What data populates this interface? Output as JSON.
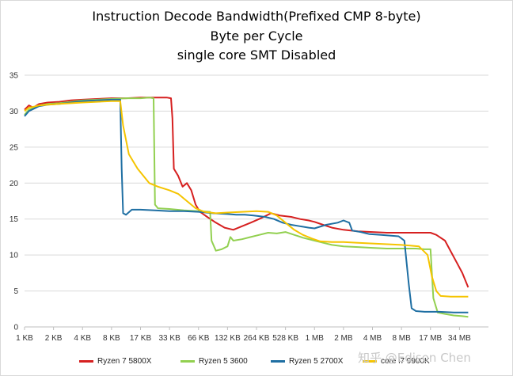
{
  "chart_data": {
    "type": "line",
    "title": "Instruction Decode Bandwidth(Prefixed CMP 8-byte)",
    "subtitle_1": "Byte per Cycle",
    "subtitle_2": "single core SMT Disabled",
    "ylim": [
      0,
      35
    ],
    "yticks": [
      0,
      5,
      10,
      15,
      20,
      25,
      30,
      35
    ],
    "categories": [
      "1 KB",
      "2 KB",
      "4 KB",
      "8 KB",
      "17 KB",
      "33 KB",
      "66 KB",
      "132 KB",
      "264 KB",
      "528 KB",
      "1 MB",
      "2 MB",
      "4 MB",
      "8 MB",
      "17 MB",
      "34 MB"
    ],
    "x_range": [
      0,
      15.3
    ],
    "grid": "horizontal",
    "legend_position": "bottom",
    "series": [
      {
        "name": "Ryzen 7 5800X",
        "color": "#d62020",
        "points": [
          [
            0,
            30.2
          ],
          [
            0.15,
            30.8
          ],
          [
            0.3,
            30.5
          ],
          [
            0.5,
            31.0
          ],
          [
            0.8,
            31.2
          ],
          [
            1.2,
            31.3
          ],
          [
            1.6,
            31.5
          ],
          [
            2,
            31.6
          ],
          [
            2.5,
            31.7
          ],
          [
            3,
            31.8
          ],
          [
            3.5,
            31.8
          ],
          [
            4,
            31.9
          ],
          [
            4.5,
            31.9
          ],
          [
            4.9,
            31.9
          ],
          [
            5.05,
            31.8
          ],
          [
            5.1,
            29
          ],
          [
            5.15,
            22
          ],
          [
            5.3,
            21
          ],
          [
            5.45,
            19.5
          ],
          [
            5.6,
            20
          ],
          [
            5.75,
            19
          ],
          [
            5.9,
            17
          ],
          [
            6.05,
            16
          ],
          [
            6.3,
            15.3
          ],
          [
            6.6,
            14.5
          ],
          [
            6.9,
            13.8
          ],
          [
            7.2,
            13.5
          ],
          [
            7.5,
            14
          ],
          [
            7.8,
            14.5
          ],
          [
            8.2,
            15.2
          ],
          [
            8.5,
            15.8
          ],
          [
            8.8,
            15.5
          ],
          [
            9.2,
            15.3
          ],
          [
            9.5,
            15
          ],
          [
            9.8,
            14.8
          ],
          [
            10,
            14.6
          ],
          [
            10.3,
            14.2
          ],
          [
            10.6,
            13.8
          ],
          [
            11,
            13.5
          ],
          [
            11.5,
            13.3
          ],
          [
            12,
            13.2
          ],
          [
            12.5,
            13.1
          ],
          [
            13,
            13.1
          ],
          [
            13.5,
            13.1
          ],
          [
            14,
            13.1
          ],
          [
            14.2,
            12.8
          ],
          [
            14.5,
            12
          ],
          [
            14.7,
            10.5
          ],
          [
            14.9,
            9
          ],
          [
            15.1,
            7.5
          ],
          [
            15.3,
            5.5
          ]
        ]
      },
      {
        "name": "Ryzen 5 3600",
        "color": "#92d050",
        "points": [
          [
            0,
            29.5
          ],
          [
            0.15,
            30.2
          ],
          [
            0.3,
            30.4
          ],
          [
            0.5,
            30.8
          ],
          [
            0.8,
            31.0
          ],
          [
            1.2,
            31.1
          ],
          [
            1.6,
            31.3
          ],
          [
            2,
            31.5
          ],
          [
            2.5,
            31.6
          ],
          [
            3,
            31.7
          ],
          [
            3.5,
            31.8
          ],
          [
            4,
            31.8
          ],
          [
            4.3,
            31.9
          ],
          [
            4.45,
            31.8
          ],
          [
            4.5,
            17
          ],
          [
            4.6,
            16.5
          ],
          [
            5,
            16.4
          ],
          [
            5.5,
            16.2
          ],
          [
            6,
            16.1
          ],
          [
            6.4,
            16
          ],
          [
            6.45,
            12
          ],
          [
            6.6,
            10.6
          ],
          [
            6.8,
            10.8
          ],
          [
            7,
            11.2
          ],
          [
            7.1,
            12.5
          ],
          [
            7.2,
            12
          ],
          [
            7.5,
            12.2
          ],
          [
            7.8,
            12.5
          ],
          [
            8.1,
            12.8
          ],
          [
            8.4,
            13.1
          ],
          [
            8.7,
            13
          ],
          [
            9,
            13.2
          ],
          [
            9.3,
            12.8
          ],
          [
            9.6,
            12.4
          ],
          [
            10,
            12
          ],
          [
            10.2,
            11.8
          ],
          [
            10.6,
            11.4
          ],
          [
            11,
            11.2
          ],
          [
            11.5,
            11.1
          ],
          [
            12,
            11
          ],
          [
            12.5,
            10.9
          ],
          [
            13,
            10.9
          ],
          [
            13.5,
            10.9
          ],
          [
            13.8,
            10.8
          ],
          [
            14,
            10.8
          ],
          [
            14.1,
            4
          ],
          [
            14.25,
            2.0
          ],
          [
            14.5,
            1.8
          ],
          [
            14.8,
            1.6
          ],
          [
            15.1,
            1.5
          ],
          [
            15.3,
            1.4
          ]
        ]
      },
      {
        "name": "Ryzen 5 2700X",
        "color": "#1f6fa3",
        "points": [
          [
            0,
            29.3
          ],
          [
            0.15,
            30.0
          ],
          [
            0.3,
            30.3
          ],
          [
            0.5,
            30.7
          ],
          [
            0.8,
            30.9
          ],
          [
            1.2,
            31.0
          ],
          [
            1.6,
            31.2
          ],
          [
            2,
            31.4
          ],
          [
            2.5,
            31.5
          ],
          [
            3,
            31.6
          ],
          [
            3.3,
            31.6
          ],
          [
            3.35,
            22
          ],
          [
            3.4,
            15.8
          ],
          [
            3.5,
            15.6
          ],
          [
            3.7,
            16.3
          ],
          [
            4,
            16.3
          ],
          [
            4.5,
            16.2
          ],
          [
            5,
            16.1
          ],
          [
            5.5,
            16.1
          ],
          [
            6,
            16
          ],
          [
            6.5,
            15.8
          ],
          [
            7,
            15.7
          ],
          [
            7.3,
            15.6
          ],
          [
            7.6,
            15.6
          ],
          [
            7.9,
            15.5
          ],
          [
            8.3,
            15.3
          ],
          [
            8.6,
            15
          ],
          [
            8.9,
            14.5
          ],
          [
            9.2,
            14.2
          ],
          [
            9.5,
            14
          ],
          [
            9.8,
            13.8
          ],
          [
            10,
            13.7
          ],
          [
            10.4,
            14.2
          ],
          [
            10.8,
            14.5
          ],
          [
            11,
            14.8
          ],
          [
            11.2,
            14.5
          ],
          [
            11.3,
            13.4
          ],
          [
            11.6,
            13.2
          ],
          [
            11.9,
            12.9
          ],
          [
            12.3,
            12.8
          ],
          [
            12.6,
            12.7
          ],
          [
            12.9,
            12.6
          ],
          [
            13.1,
            12.0
          ],
          [
            13.25,
            6
          ],
          [
            13.35,
            2.6
          ],
          [
            13.5,
            2.2
          ],
          [
            13.8,
            2.1
          ],
          [
            14.3,
            2.1
          ],
          [
            14.8,
            2.0
          ],
          [
            15.3,
            2.0
          ]
        ]
      },
      {
        "name": "core i7 9900K",
        "color": "#f5c400",
        "points": [
          [
            0,
            30.0
          ],
          [
            0.15,
            30.5
          ],
          [
            0.3,
            30.6
          ],
          [
            0.5,
            30.8
          ],
          [
            0.8,
            30.9
          ],
          [
            1.2,
            31.0
          ],
          [
            1.6,
            31.1
          ],
          [
            2,
            31.2
          ],
          [
            2.5,
            31.3
          ],
          [
            3,
            31.4
          ],
          [
            3.3,
            31.4
          ],
          [
            3.4,
            28
          ],
          [
            3.6,
            24
          ],
          [
            3.9,
            22
          ],
          [
            4.1,
            21
          ],
          [
            4.3,
            20
          ],
          [
            4.6,
            19.5
          ],
          [
            5,
            19
          ],
          [
            5.3,
            18.5
          ],
          [
            5.6,
            17.5
          ],
          [
            5.9,
            16.5
          ],
          [
            6.2,
            16
          ],
          [
            6.6,
            15.8
          ],
          [
            7,
            15.9
          ],
          [
            7.5,
            16
          ],
          [
            8,
            16.1
          ],
          [
            8.4,
            16
          ],
          [
            8.7,
            15.5
          ],
          [
            9,
            14.5
          ],
          [
            9.3,
            13.5
          ],
          [
            9.6,
            12.8
          ],
          [
            9.9,
            12.3
          ],
          [
            10.2,
            11.9
          ],
          [
            10.6,
            11.8
          ],
          [
            11,
            11.8
          ],
          [
            11.5,
            11.7
          ],
          [
            12,
            11.6
          ],
          [
            12.5,
            11.5
          ],
          [
            13,
            11.4
          ],
          [
            13.3,
            11.3
          ],
          [
            13.6,
            11.2
          ],
          [
            13.9,
            10
          ],
          [
            14.05,
            7
          ],
          [
            14.2,
            5
          ],
          [
            14.35,
            4.3
          ],
          [
            14.7,
            4.2
          ],
          [
            15.3,
            4.2
          ]
        ]
      }
    ]
  },
  "watermark": "知乎 @Edison Chen"
}
